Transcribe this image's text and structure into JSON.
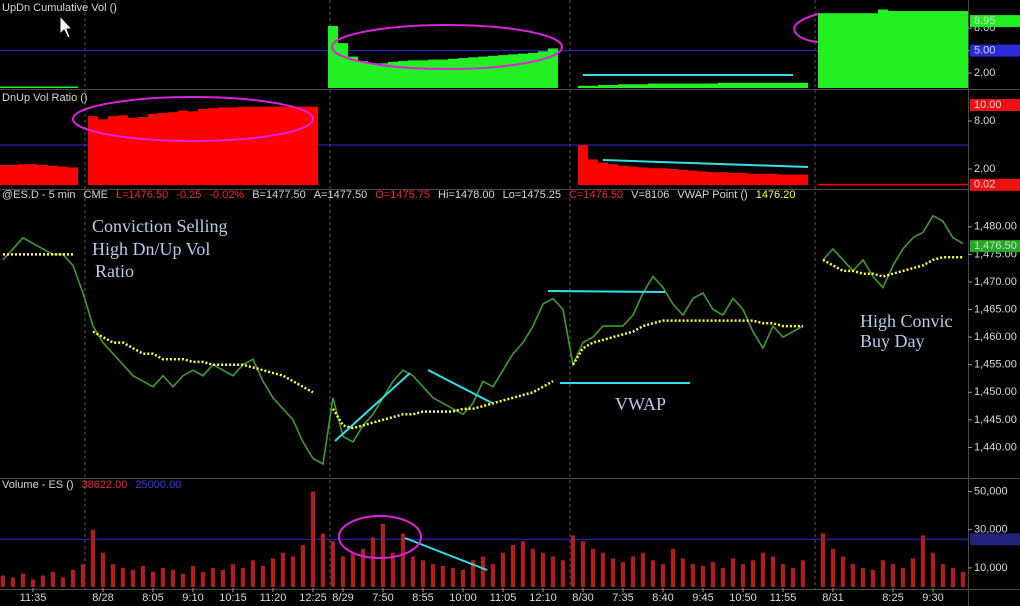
{
  "chart_data": [
    {
      "type": "area",
      "header": [
        {
          "text": "UpDn  Cumulative Vol  ()",
          "color": "#d8d8d8"
        }
      ],
      "ylim": [
        0,
        11.5
      ],
      "yticks": [
        {
          "value": 2,
          "label": "2.00"
        },
        {
          "value": 5,
          "label": "5.00"
        },
        {
          "value": 8,
          "label": "8.00"
        }
      ],
      "reference_line": {
        "value": 5,
        "color": "#2a2ad8"
      },
      "markers": [
        {
          "value": 8.95,
          "label": "8.95",
          "color": "#22ee22"
        },
        {
          "value": 5,
          "label": "5.00",
          "color": "#2a2ad8"
        }
      ],
      "series": [
        {
          "name": "UpDn Cumulative Vol",
          "color": "#22f022",
          "values": [
            0.2,
            0.2,
            0.2,
            0.2,
            0.2,
            0.2,
            0.2,
            0.2,
            null,
            null,
            null,
            null,
            null,
            null,
            null,
            null,
            null,
            null,
            null,
            null,
            null,
            null,
            null,
            null,
            null,
            null,
            null,
            null,
            null,
            null,
            null,
            null,
            null,
            8.3,
            6.0,
            4.2,
            3.6,
            3.3,
            3.3,
            3.5,
            3.6,
            3.7,
            3.7,
            3.8,
            3.8,
            3.9,
            4.0,
            4.1,
            4.2,
            4.3,
            4.4,
            4.5,
            4.6,
            4.7,
            4.9,
            5.3,
            null,
            null,
            0.3,
            0.3,
            0.4,
            0.4,
            0.5,
            0.5,
            0.5,
            0.6,
            0.6,
            0.6,
            0.6,
            0.6,
            0.6,
            0.6,
            0.7,
            0.7,
            0.7,
            0.7,
            0.7,
            0.7,
            0.7,
            0.7,
            0.7,
            null,
            10.0,
            10.0,
            10.0,
            10.0,
            10.0,
            10.0,
            10.5,
            10.3,
            10.3,
            10.3,
            10.3,
            10.3,
            10.3,
            10.3,
            10.3
          ]
        }
      ]
    },
    {
      "type": "area",
      "header": [
        {
          "text": "DnUp Vol Ratio  ()",
          "color": "#d8d8d8"
        }
      ],
      "ylim": [
        0,
        10.5
      ],
      "yticks": [
        {
          "value": 2,
          "label": "2.00"
        },
        {
          "value": 8,
          "label": "8.00"
        }
      ],
      "reference_line": {
        "value": 5,
        "color": "#2a2ad8"
      },
      "markers": [
        {
          "value": 10,
          "label": "10.00",
          "color": "#ee1111"
        },
        {
          "value": 0.02,
          "label": "0.02",
          "color": "#ee1111"
        }
      ],
      "series": [
        {
          "name": "DnUp Vol Ratio",
          "color": "#ff0000",
          "values": [
            2.5,
            2.5,
            2.6,
            2.6,
            2.5,
            2.4,
            2.3,
            2.2,
            null,
            8.6,
            8.2,
            8.6,
            8.7,
            8.4,
            8.5,
            8.9,
            9.0,
            9.1,
            9.3,
            9.2,
            9.5,
            9.6,
            9.7,
            9.7,
            9.8,
            9.8,
            9.8,
            9.8,
            9.8,
            9.8,
            9.8,
            9.8,
            null,
            null,
            null,
            null,
            null,
            null,
            null,
            null,
            null,
            null,
            null,
            null,
            null,
            null,
            null,
            null,
            null,
            null,
            null,
            null,
            null,
            null,
            null,
            null,
            null,
            null,
            5.0,
            3.2,
            2.8,
            2.6,
            2.4,
            2.3,
            2.2,
            2.1,
            2.1,
            2.0,
            1.9,
            1.8,
            1.7,
            1.6,
            1.6,
            1.5,
            1.5,
            1.4,
            1.4,
            1.4,
            1.3,
            1.3,
            1.3,
            null,
            0.15,
            0.15,
            0.15,
            0.15,
            0.15,
            0.15,
            0.15,
            0.15,
            0.15,
            0.15,
            0.15,
            0.15,
            0.15,
            0.15,
            0.15
          ]
        }
      ]
    },
    {
      "type": "line",
      "header": [
        {
          "text": "@ES.D - 5 min",
          "color": "#d8d8d8"
        },
        {
          "text": "CME",
          "color": "#d8d8d8"
        },
        {
          "text": "L=1476.50",
          "color": "#ee2a2a"
        },
        {
          "text": "-0.25",
          "color": "#ee2a2a"
        },
        {
          "text": "-0.02%",
          "color": "#ee2a2a"
        },
        {
          "text": "B=1477.50",
          "color": "#d8d8d8"
        },
        {
          "text": "A=1477.50",
          "color": "#d8d8d8"
        },
        {
          "text": "O=1475.75",
          "color": "#ee2a2a"
        },
        {
          "text": "Hi=1478.00",
          "color": "#d8d8d8"
        },
        {
          "text": "Lo=1475.25",
          "color": "#d8d8d8"
        },
        {
          "text": "C=1476.50",
          "color": "#ee2a2a"
        },
        {
          "text": "V=8106",
          "color": "#d8d8d8"
        },
        {
          "text": "VWAP Point  ()",
          "color": "#d8d8d8"
        },
        {
          "text": "1476.20",
          "color": "#ffff44"
        }
      ],
      "ylim": [
        1435,
        1484.5
      ],
      "yticks": [
        {
          "value": 1440,
          "label": "1,440.00"
        },
        {
          "value": 1445,
          "label": "1,445.00"
        },
        {
          "value": 1450,
          "label": "1,450.00"
        },
        {
          "value": 1455,
          "label": "1,455.00"
        },
        {
          "value": 1460,
          "label": "1,460.00"
        },
        {
          "value": 1465,
          "label": "1,465.00"
        },
        {
          "value": 1470,
          "label": "1,470.00"
        },
        {
          "value": 1475,
          "label": "1,475.00"
        },
        {
          "value": 1480,
          "label": "1,480.00"
        }
      ],
      "markers": [
        {
          "value": 1476.5,
          "label": "1,476.50",
          "color": "#22aa22"
        }
      ],
      "annotations": [
        "Conviction Selling",
        "High Dn/Up Vol",
        "Ratio",
        "VWAP",
        "High Convic",
        "Buy Day"
      ],
      "series": [
        {
          "name": "ES",
          "color": "#3c9c30",
          "dash": "",
          "values": [
            1474,
            1476,
            1478,
            1477,
            1476,
            1475,
            1475,
            1473,
            1468,
            1462,
            1459,
            1457,
            1455,
            1453,
            1452,
            1451,
            1453,
            1451,
            1453,
            1454,
            1453,
            1455,
            1454,
            1453,
            1455,
            1456,
            1452,
            1449,
            1447,
            1445,
            1441,
            1438,
            1437,
            1449,
            1442,
            1441,
            1444,
            1446,
            1449,
            1452,
            1454,
            1453,
            1451,
            1449,
            1448,
            1447,
            1446,
            1448,
            1452,
            1451,
            1454,
            1457,
            1459,
            1462,
            1466,
            1467,
            1465,
            1455,
            1459,
            1460,
            1462,
            1462,
            1462,
            1464,
            1468,
            1471,
            1469,
            1466,
            1464,
            1467,
            1468,
            1465,
            1464,
            1467,
            1465,
            1461,
            1458,
            1462,
            1460,
            1461,
            1462,
            null,
            1474,
            1476,
            1474,
            1472,
            1474,
            1471,
            1469,
            1473,
            1476,
            1478,
            1479,
            1482,
            1481,
            1478,
            1477
          ]
        },
        {
          "name": "VWAP Point",
          "color": "#ffff40",
          "dash": "2 2",
          "values": [
            1475,
            1475,
            1475,
            1475,
            1475,
            1475,
            1475,
            1475,
            null,
            1461,
            1460,
            1459,
            1459,
            1458,
            1457,
            1457,
            1456,
            1456,
            1456,
            1455.5,
            1455.5,
            1455,
            1455,
            1455,
            1455,
            1454.5,
            1454,
            1453.5,
            1453,
            1452,
            1451,
            1450,
            null,
            1447,
            1444,
            1443.5,
            1444,
            1444.5,
            1445,
            1445.5,
            1446,
            1446,
            1446.5,
            1446.5,
            1446.5,
            1446.5,
            1447,
            1447,
            1447.5,
            1448,
            1448.5,
            1449,
            1449.5,
            1450,
            1451,
            1452,
            null,
            1455,
            1458,
            1459,
            1459.5,
            1460,
            1460.5,
            1461,
            1462,
            1462.5,
            1463,
            1463,
            1463,
            1463,
            1463,
            1463,
            1463,
            1463,
            1463,
            1463,
            1462.5,
            1462.5,
            1462,
            1462,
            1462,
            null,
            1474,
            1473,
            1472,
            1472,
            1471.5,
            1471.5,
            1471,
            1471.5,
            1472,
            1472.5,
            1473,
            1474,
            1474.5,
            1474.5,
            1474.5
          ]
        }
      ]
    },
    {
      "type": "bar",
      "header": [
        {
          "text": "Volume - ES  ()",
          "color": "#d8d8d8"
        },
        {
          "text": "38622.00",
          "color": "#ee2a2a"
        },
        {
          "text": "25000.00",
          "color": "#3a3af0"
        }
      ],
      "ylim": [
        0,
        55000
      ],
      "yticks": [
        {
          "value": 10000,
          "label": "10,000"
        },
        {
          "value": 30000,
          "label": "30,000"
        },
        {
          "value": 50000,
          "label": "50,000"
        }
      ],
      "reference_line": {
        "value": 25000,
        "color": "#2a2ad8"
      },
      "markers": [
        {
          "value": 25000,
          "label": "",
          "color": "#22227a"
        }
      ],
      "categories": [
        null,
        null,
        null,
        "11:35",
        null,
        null,
        null,
        null,
        null,
        null,
        "8/28",
        null,
        null,
        null,
        null,
        "8:05",
        null,
        null,
        null,
        "9:10",
        null,
        null,
        null,
        "10:15",
        null,
        null,
        null,
        "11:20",
        null,
        null,
        null,
        "12:25",
        null,
        null,
        "8/29",
        null,
        null,
        null,
        "7:50",
        null,
        null,
        null,
        "8:55",
        null,
        null,
        null,
        "10:00",
        null,
        null,
        null,
        "11:05",
        null,
        null,
        null,
        "12:10",
        null,
        null,
        null,
        "8/30",
        null,
        null,
        null,
        "7:35",
        null,
        null,
        null,
        "8:40",
        null,
        null,
        null,
        "9:45",
        null,
        null,
        null,
        "10:50",
        null,
        null,
        null,
        "11:55",
        null,
        null,
        null,
        null,
        "8/31",
        null,
        null,
        null,
        null,
        null,
        "8:25",
        null,
        null,
        null,
        "9:30",
        null,
        null,
        null
      ],
      "series": [
        {
          "name": "Volume - ES",
          "color": "#b81a1a",
          "values": [
            6000,
            5000,
            7000,
            4000,
            6000,
            8000,
            5000,
            9000,
            12000,
            30000,
            18000,
            12000,
            10000,
            9000,
            11000,
            8000,
            10000,
            9000,
            7000,
            11000,
            8000,
            10000,
            9000,
            12000,
            10000,
            14000,
            11000,
            15000,
            18000,
            16000,
            22000,
            50000,
            28000,
            24000,
            16000,
            18000,
            20000,
            26000,
            33000,
            18000,
            28000,
            16000,
            14000,
            12000,
            11000,
            10000,
            9000,
            14000,
            16000,
            12000,
            18000,
            22000,
            24000,
            20000,
            18000,
            16000,
            14000,
            27000,
            24000,
            20000,
            18000,
            15000,
            13000,
            16000,
            18000,
            14000,
            12000,
            20000,
            15000,
            12000,
            11000,
            13000,
            10000,
            15000,
            12000,
            14000,
            18000,
            16000,
            12000,
            10000,
            14000,
            null,
            28000,
            20000,
            16000,
            12000,
            10000,
            9000,
            14000,
            12000,
            10000,
            15000,
            27000,
            18000,
            12000,
            10000,
            8000
          ]
        }
      ]
    }
  ]
}
